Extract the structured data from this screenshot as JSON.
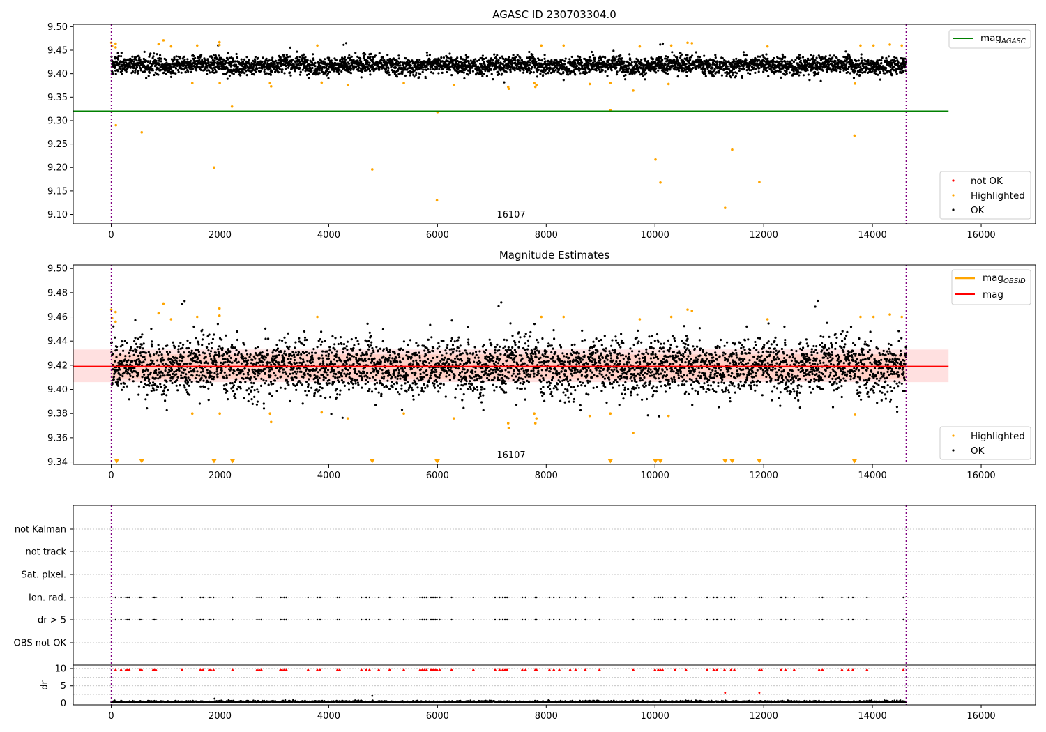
{
  "chart_data": [
    {
      "type": "scatter",
      "title": "AGASC ID 230703304.0",
      "xlim": [
        -700,
        17000
      ],
      "ylim": [
        9.08,
        9.505
      ],
      "xticks": [
        "0",
        "2000",
        "4000",
        "6000",
        "8000",
        "10000",
        "12000",
        "14000",
        "16000"
      ],
      "yticks": [
        "9.10",
        "9.15",
        "9.20",
        "9.25",
        "9.30",
        "9.35",
        "9.40",
        "9.45",
        "9.50"
      ],
      "annotation": "16107",
      "obsid_range": [
        0,
        14620
      ],
      "mag_agasc": 9.32,
      "legend_lines": [
        {
          "name": "mag",
          "sub": "AGASC",
          "color": "#008000"
        }
      ],
      "legend_points": [
        {
          "name": "not OK",
          "color": "#ff0000"
        },
        {
          "name": "Highlighted",
          "color": "#ffa500"
        },
        {
          "name": "OK",
          "color": "#000000"
        }
      ],
      "ok_band": {
        "center": 9.418,
        "spread": 0.009
      },
      "highlighted_points": [
        [
          0,
          9.466
        ],
        [
          15,
          9.459
        ],
        [
          80,
          9.464
        ],
        [
          80,
          9.456
        ],
        [
          85,
          9.29
        ],
        [
          560,
          9.275
        ],
        [
          870,
          9.463
        ],
        [
          960,
          9.471
        ],
        [
          1100,
          9.458
        ],
        [
          1490,
          9.38
        ],
        [
          1580,
          9.46
        ],
        [
          1890,
          9.2
        ],
        [
          1990,
          9.467
        ],
        [
          1990,
          9.461
        ],
        [
          1995,
          9.38
        ],
        [
          2220,
          9.33
        ],
        [
          2920,
          9.38
        ],
        [
          2940,
          9.373
        ],
        [
          3790,
          9.46
        ],
        [
          3870,
          9.381
        ],
        [
          4350,
          9.376
        ],
        [
          4800,
          9.196
        ],
        [
          5380,
          9.38
        ],
        [
          5990,
          9.13
        ],
        [
          6000,
          9.318
        ],
        [
          6300,
          9.376
        ],
        [
          7300,
          9.372
        ],
        [
          7310,
          9.368
        ],
        [
          7780,
          9.38
        ],
        [
          7800,
          9.372
        ],
        [
          7820,
          9.376
        ],
        [
          7910,
          9.46
        ],
        [
          8320,
          9.46
        ],
        [
          8800,
          9.378
        ],
        [
          9180,
          9.322
        ],
        [
          9180,
          9.38
        ],
        [
          9600,
          9.364
        ],
        [
          9720,
          9.458
        ],
        [
          10010,
          9.217
        ],
        [
          10100,
          9.168
        ],
        [
          10250,
          9.378
        ],
        [
          10300,
          9.46
        ],
        [
          10600,
          9.466
        ],
        [
          10680,
          9.465
        ],
        [
          11290,
          9.114
        ],
        [
          11420,
          9.238
        ],
        [
          11920,
          9.169
        ],
        [
          12070,
          9.458
        ],
        [
          13670,
          9.268
        ],
        [
          13680,
          9.379
        ],
        [
          13780,
          9.46
        ],
        [
          14020,
          9.46
        ],
        [
          14320,
          9.462
        ],
        [
          14540,
          9.46
        ]
      ]
    },
    {
      "type": "scatter",
      "title": "Magnitude Estimates",
      "xlim": [
        -700,
        17000
      ],
      "ylim": [
        9.338,
        9.503
      ],
      "xticks": [
        "0",
        "2000",
        "4000",
        "6000",
        "8000",
        "10000",
        "12000",
        "14000",
        "16000"
      ],
      "yticks": [
        "9.34",
        "9.36",
        "9.38",
        "9.40",
        "9.42",
        "9.44",
        "9.46",
        "9.48",
        "9.50"
      ],
      "annotation": "16107",
      "mag": 9.419,
      "mag_band": [
        9.406,
        9.433
      ],
      "mag_inner_band": [
        9.409,
        9.429
      ],
      "legend_lines": [
        {
          "name": "mag",
          "sub": "OBSID",
          "color": "#ffa500"
        },
        {
          "name": "mag",
          "sub": "",
          "color": "#ff0000"
        }
      ],
      "legend_points": [
        {
          "name": "Highlighted",
          "color": "#ffa500"
        },
        {
          "name": "OK",
          "color": "#000000"
        }
      ],
      "ok_band": {
        "center": 9.419,
        "spread": 0.011
      },
      "lower_limit_markers": [
        100,
        560,
        1890,
        2230,
        4800,
        5990,
        6000,
        9180,
        10010,
        10100,
        11290,
        11420,
        11920,
        13670
      ]
    },
    {
      "type": "scatter",
      "xlim": [
        -700,
        17000
      ],
      "flag_labels": [
        "not Kalman",
        "not track",
        "Sat. pixel.",
        "Ion. rad.",
        "dr > 5",
        "OBS not OK"
      ],
      "flag_events": [
        80,
        180,
        270,
        300,
        330,
        530,
        560,
        770,
        790,
        820,
        1300,
        1640,
        1690,
        1800,
        1830,
        1880,
        2230,
        2680,
        2720,
        2760,
        3110,
        3140,
        3180,
        3220,
        3620,
        3790,
        3840,
        4160,
        4200,
        4600,
        4690,
        4750,
        4920,
        5120,
        5380,
        5680,
        5720,
        5760,
        5800,
        5880,
        5920,
        5960,
        5990,
        6040,
        6260,
        6660,
        7060,
        7140,
        7200,
        7240,
        7280,
        7560,
        7620,
        7800,
        7820,
        8060,
        8140,
        8240,
        8440,
        8540,
        8720,
        8980,
        9600,
        10000,
        10060,
        10100,
        10140,
        10370,
        10570,
        10960,
        11080,
        11140,
        11280,
        11400,
        11460,
        11920,
        11960,
        12320,
        12400,
        12560,
        13020,
        13080,
        13440,
        13560,
        13640,
        13900,
        14570
      ],
      "dr_ylabel": "dr",
      "dr_yticks": [
        "0",
        "5",
        "10"
      ],
      "dr_ylim": [
        -0.5,
        11
      ],
      "dr_outliers": [
        [
          1900,
          1.3
        ],
        [
          4800,
          2.1
        ],
        [
          11290,
          3.0
        ],
        [
          11920,
          3.0
        ]
      ],
      "xticks": [
        "0",
        "2000",
        "4000",
        "6000",
        "8000",
        "10000",
        "12000",
        "14000",
        "16000"
      ]
    }
  ]
}
